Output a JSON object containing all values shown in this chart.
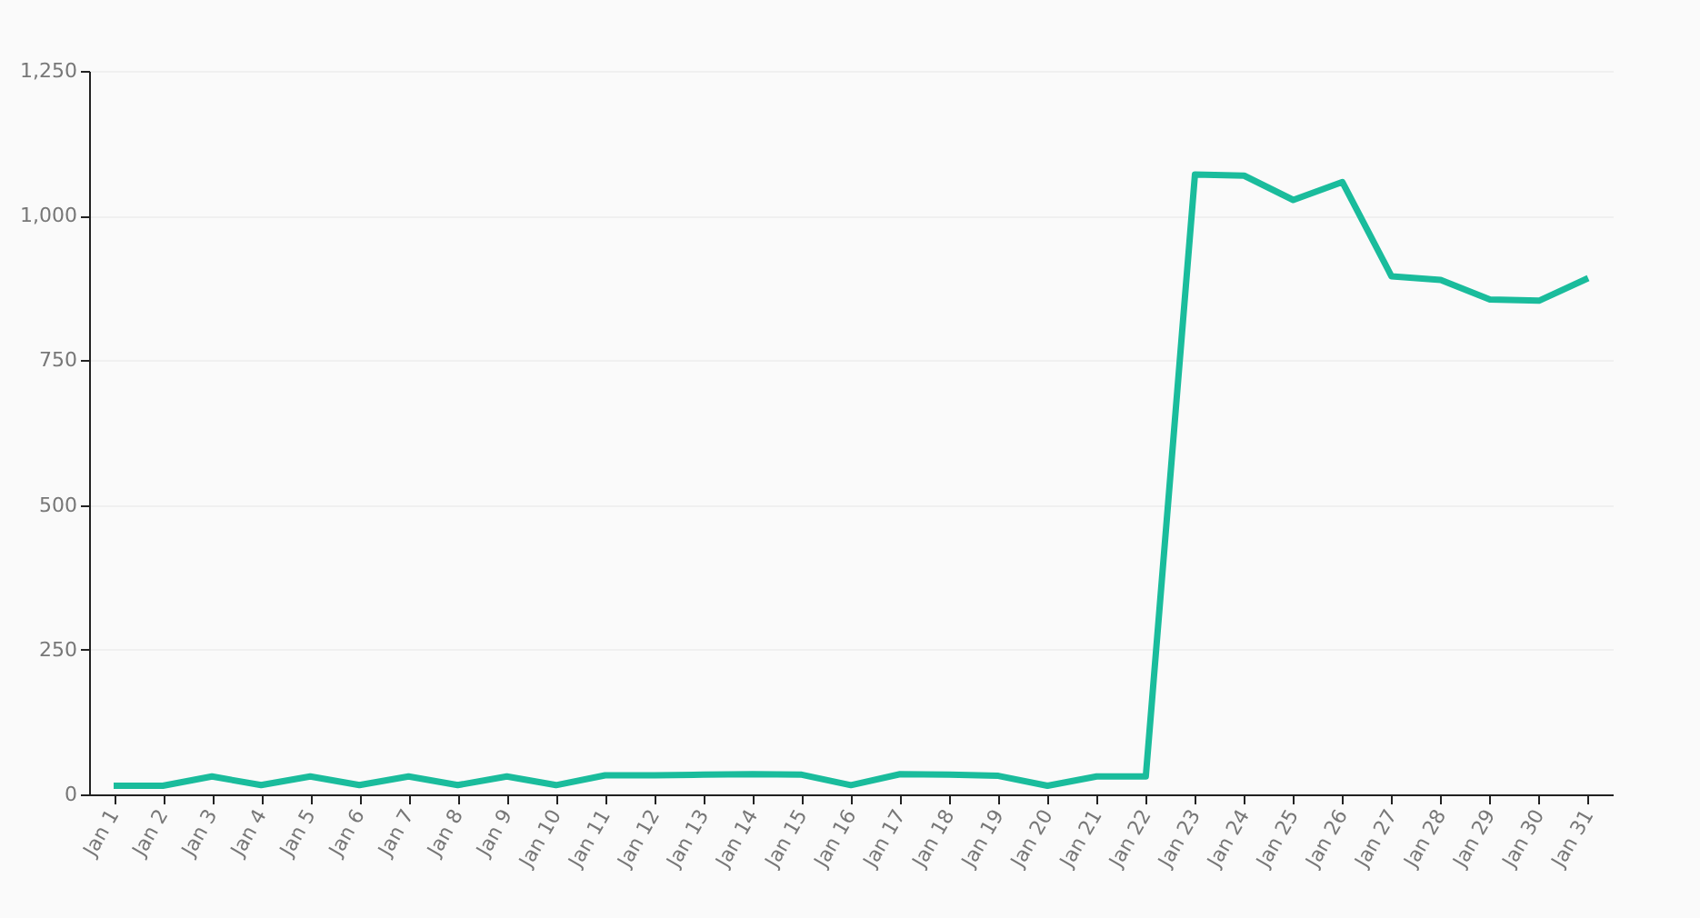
{
  "chart_data": {
    "type": "line",
    "categories": [
      "Jan 1",
      "Jan 2",
      "Jan 3",
      "Jan 4",
      "Jan 5",
      "Jan 6",
      "Jan 7",
      "Jan 8",
      "Jan 9",
      "Jan 10",
      "Jan 11",
      "Jan 12",
      "Jan 13",
      "Jan 14",
      "Jan 15",
      "Jan 16",
      "Jan 17",
      "Jan 18",
      "Jan 19",
      "Jan 20",
      "Jan 21",
      "Jan 22",
      "Jan 23",
      "Jan 24",
      "Jan 25",
      "Jan 26",
      "Jan 27",
      "Jan 28",
      "Jan 29",
      "Jan 30",
      "Jan 31"
    ],
    "series": [
      {
        "color": "#1abc9c",
        "values": [
          15,
          15,
          31,
          16,
          31,
          16,
          31,
          16,
          31,
          16,
          33,
          33,
          34,
          35,
          34,
          16,
          35,
          34,
          32,
          15,
          31,
          31,
          1071,
          1069,
          1027,
          1058,
          895,
          889,
          855,
          853,
          892
        ]
      }
    ],
    "ylim": [
      0,
      1250
    ],
    "yticks": [
      0,
      {
        "value": 250,
        "label": "250"
      },
      {
        "value": 500,
        "label": "500"
      },
      {
        "value": 750,
        "label": "750"
      },
      {
        "value": 1000,
        "label": "1,000"
      },
      {
        "value": 1250,
        "label": "1,250"
      }
    ],
    "grid": "y",
    "marker": "none",
    "line_style": "solid"
  }
}
